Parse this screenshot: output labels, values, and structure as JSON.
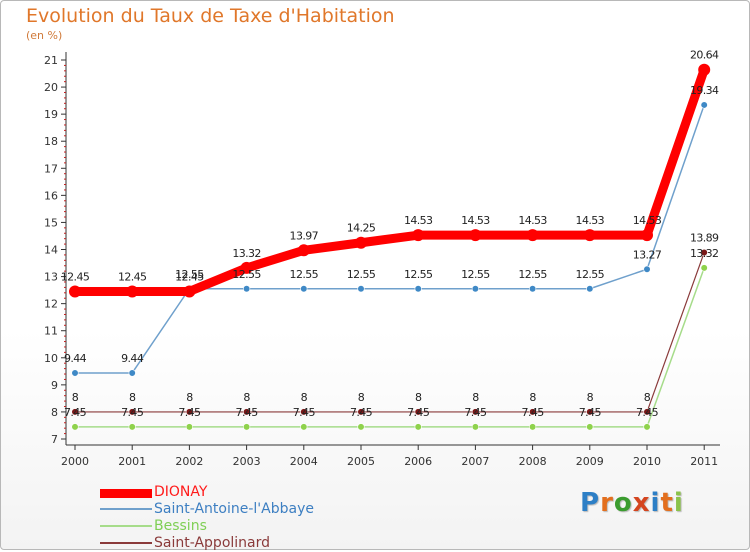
{
  "title": "Evolution du Taux de Taxe d'Habitation",
  "unit": "(en %)",
  "logo": {
    "text": "Proxiti",
    "letters": [
      "P",
      "r",
      "o",
      "x",
      "i",
      "t",
      "i"
    ],
    "colors": [
      "#2d7fc6",
      "#e36f1e",
      "#3b9c2f",
      "#d4451f",
      "#2d7fc6",
      "#e36f1e",
      "#8bc34a"
    ]
  },
  "chart_data": {
    "type": "line",
    "title": "Evolution du Taux de Taxe d'Habitation",
    "ylabel": "(en %)",
    "xlabel": "",
    "x": [
      "2000",
      "2001",
      "2002",
      "2003",
      "2004",
      "2005",
      "2006",
      "2007",
      "2008",
      "2009",
      "2010",
      "2011"
    ],
    "ylim": [
      7,
      21
    ],
    "yticks": [
      "7",
      "8",
      "9",
      "10",
      "11",
      "12",
      "13",
      "14",
      "15",
      "16",
      "17",
      "18",
      "19",
      "20",
      "21"
    ],
    "grid": false,
    "legend": "bottom-left",
    "series": [
      {
        "name": "DIONAY",
        "color": "#ff0000",
        "values": [
          12.45,
          12.45,
          12.45,
          13.32,
          13.97,
          14.25,
          14.53,
          14.53,
          14.53,
          14.53,
          14.53,
          20.64
        ],
        "labels": [
          "12.45",
          "12.45",
          "12.45",
          "13.32",
          "13.97",
          "14.25",
          "14.53",
          "14.53",
          "14.53",
          "14.53",
          "14.53",
          "20.64"
        ]
      },
      {
        "name": "Saint-Antoine-l'Abbaye",
        "color": "#6fa0cc",
        "marker": "#3f89c6",
        "values": [
          9.44,
          9.44,
          12.55,
          12.55,
          12.55,
          12.55,
          12.55,
          12.55,
          12.55,
          12.55,
          13.27,
          19.34
        ],
        "labels": [
          "9.44",
          "9.44",
          "12.55",
          "12.55",
          "12.55",
          "12.55",
          "12.55",
          "12.55",
          "12.55",
          "12.55",
          "13.27",
          "19.34"
        ]
      },
      {
        "name": "Bessins",
        "color": "#a6dc8a",
        "marker": "#8fd24c",
        "values": [
          7.45,
          7.45,
          7.45,
          7.45,
          7.45,
          7.45,
          7.45,
          7.45,
          7.45,
          7.45,
          7.45,
          13.32
        ],
        "labels": [
          "7.45",
          "7.45",
          "7.45",
          "7.45",
          "7.45",
          "7.45",
          "7.45",
          "7.45",
          "7.45",
          "7.45",
          "7.45",
          "13.32"
        ]
      },
      {
        "name": "Saint-Appolinard",
        "color": "#8a3a3a",
        "marker": "#7a1818",
        "values": [
          8,
          8,
          8,
          8,
          8,
          8,
          8,
          8,
          8,
          8,
          8,
          13.89
        ],
        "labels": [
          "8",
          "8",
          "8",
          "8",
          "8",
          "8",
          "8",
          "8",
          "8",
          "8",
          "8",
          "13.89"
        ]
      }
    ]
  }
}
